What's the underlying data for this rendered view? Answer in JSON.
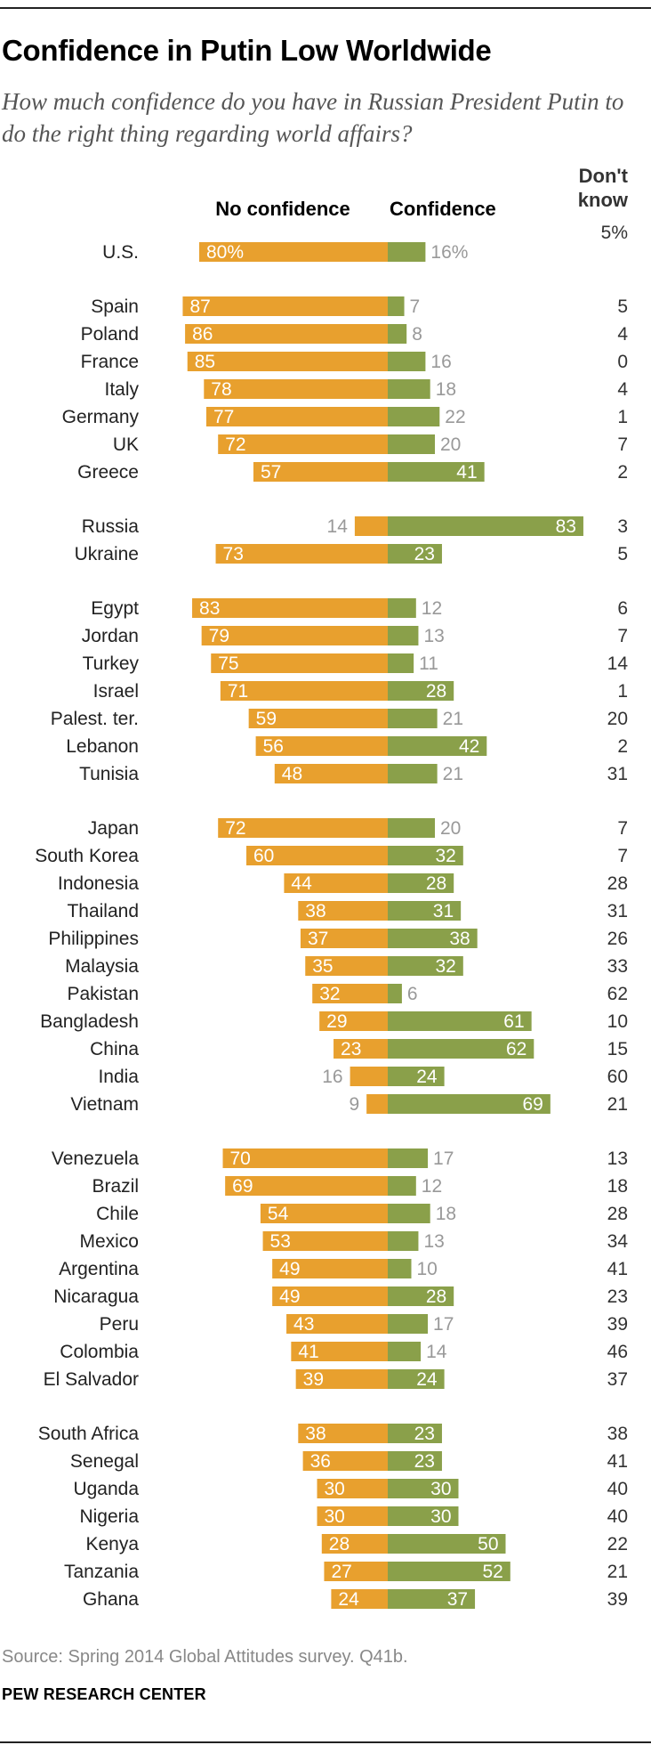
{
  "title": "Confidence in Putin Low Worldwide",
  "subtitle": "How much confidence do you have in Russian President Putin to do the right thing regarding world affairs?",
  "source": "Source: Spring 2014 Global Attitudes survey. Q41b.",
  "org": "PEW RESEARCH CENTER",
  "colors": {
    "no_confidence": "#E8A02E",
    "confidence": "#8AA04A",
    "label_light": "#ffffff",
    "label_outside": "#999999"
  },
  "chart_data": {
    "type": "bar",
    "orientation": "horizontal diverging",
    "series": [
      {
        "name": "No confidence",
        "values": [
          80,
          87,
          86,
          85,
          78,
          77,
          72,
          57,
          14,
          73,
          83,
          79,
          75,
          71,
          59,
          56,
          48,
          72,
          60,
          44,
          38,
          37,
          35,
          32,
          29,
          23,
          16,
          9,
          70,
          69,
          54,
          53,
          49,
          49,
          43,
          41,
          39,
          38,
          36,
          30,
          30,
          28,
          27,
          24
        ]
      },
      {
        "name": "Confidence",
        "values": [
          16,
          7,
          8,
          16,
          18,
          22,
          20,
          41,
          83,
          23,
          12,
          13,
          11,
          28,
          21,
          42,
          21,
          20,
          32,
          28,
          31,
          38,
          32,
          6,
          61,
          62,
          24,
          69,
          17,
          12,
          18,
          13,
          10,
          28,
          17,
          14,
          24,
          23,
          23,
          30,
          30,
          50,
          52,
          37
        ]
      },
      {
        "name": "Don't know",
        "values": [
          5,
          5,
          4,
          0,
          4,
          1,
          7,
          2,
          3,
          5,
          6,
          7,
          14,
          1,
          20,
          2,
          31,
          7,
          7,
          28,
          31,
          26,
          33,
          62,
          10,
          15,
          60,
          21,
          13,
          18,
          28,
          34,
          41,
          23,
          39,
          46,
          37,
          38,
          41,
          40,
          40,
          22,
          21,
          39
        ]
      }
    ],
    "groups": [
      [
        "U.S."
      ],
      [
        "Spain",
        "Poland",
        "France",
        "Italy",
        "Germany",
        "UK",
        "Greece"
      ],
      [
        "Russia",
        "Ukraine"
      ],
      [
        "Egypt",
        "Jordan",
        "Turkey",
        "Israel",
        "Palest. ter.",
        "Lebanon",
        "Tunisia"
      ],
      [
        "Japan",
        "South Korea",
        "Indonesia",
        "Thailand",
        "Philippines",
        "Malaysia",
        "Pakistan",
        "Bangladesh",
        "China",
        "India",
        "Vietnam"
      ],
      [
        "Venezuela",
        "Brazil",
        "Chile",
        "Mexico",
        "Argentina",
        "Nicaragua",
        "Peru",
        "Colombia",
        "El Salvador"
      ],
      [
        "South Africa",
        "Senegal",
        "Uganda",
        "Nigeria",
        "Kenya",
        "Tanzania",
        "Ghana"
      ]
    ],
    "headers": {
      "no_confidence": "No confidence",
      "confidence": "Confidence",
      "dont_know_line1": "Don't",
      "dont_know_line2": "know"
    },
    "first_row_percent": true
  }
}
